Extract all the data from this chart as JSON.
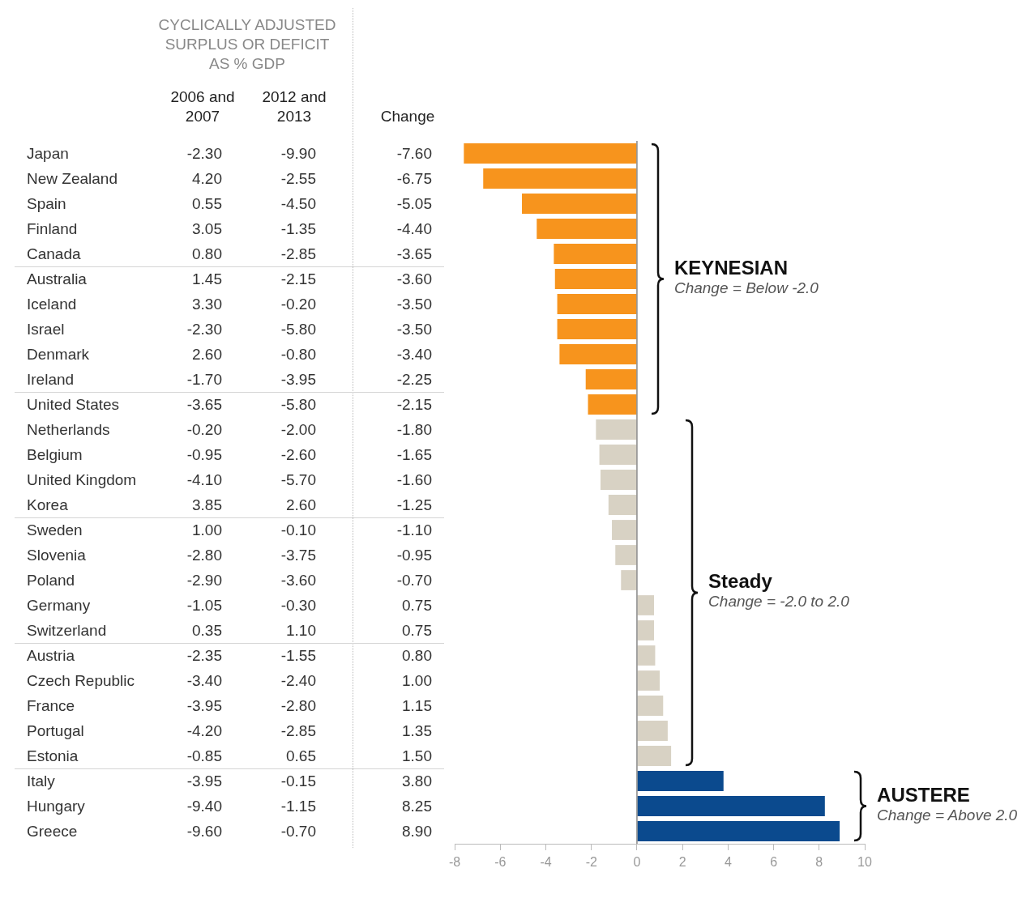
{
  "chart_data": [
    {
      "type": "other",
      "subtitle": "CYCLICALLY ADJUSTED SURPLUS OR DEFICIT AS % GDP",
      "categories": [
        "Japan",
        "New Zealand",
        "Spain",
        "Finland",
        "Canada",
        "Australia",
        "Iceland",
        "Israel",
        "Denmark",
        "Ireland",
        "United States",
        "Netherlands",
        "Belgium",
        "United Kingdom",
        "Korea",
        "Sweden",
        "Slovenia",
        "Poland",
        "Germany",
        "Switzerland",
        "Austria",
        "Czech Republic",
        "France",
        "Portugal",
        "Estonia",
        "Italy",
        "Hungary",
        "Greece"
      ],
      "series": [
        {
          "name": "2006 and 2007",
          "values": [
            -2.3,
            4.2,
            0.55,
            3.05,
            0.8,
            1.45,
            3.3,
            -2.3,
            2.6,
            -1.7,
            -3.65,
            -0.2,
            -0.95,
            -4.1,
            3.85,
            1.0,
            -2.8,
            -2.9,
            -1.05,
            0.35,
            -2.35,
            -3.4,
            -3.95,
            -4.2,
            -0.85,
            -3.95,
            -9.4,
            -9.6
          ],
          "value_labels": [
            "-2.30",
            "4.20",
            "0.55",
            "3.05",
            "0.80",
            "1.45",
            "3.30",
            "-2.30",
            "2.60",
            "-1.70",
            "-3.65",
            "-0.20",
            "-0.95",
            "-4.10",
            "3.85",
            "1.00",
            "-2.80",
            "-2.90",
            "-1.05",
            "0.35",
            "-2.35",
            "-3.40",
            "-3.95",
            "-4.20",
            "-0.85",
            "-3.95",
            "-9.40",
            "-9.60"
          ]
        },
        {
          "name": "2012 and 2013",
          "values": [
            -9.9,
            -2.55,
            -4.5,
            -1.35,
            -2.85,
            -2.15,
            -0.2,
            -5.8,
            -0.8,
            -3.95,
            -5.8,
            -2.0,
            -2.6,
            -5.7,
            2.6,
            -0.1,
            -3.75,
            -3.6,
            -0.3,
            1.1,
            -1.55,
            -2.4,
            -2.8,
            -2.85,
            0.65,
            -0.15,
            -1.15,
            -0.7
          ],
          "value_labels": [
            "-9.90",
            "-2.55",
            "-4.50",
            "-1.35",
            "-2.85",
            "-2.15",
            "-0.20",
            "-5.80",
            "-0.80",
            "-3.95",
            "-5.80",
            "-2.00",
            "-2.60",
            "-5.70",
            "2.60",
            "-0.10",
            "-3.75",
            "-3.60",
            "-0.30",
            "1.10",
            "-1.55",
            "-2.40",
            "-2.80",
            "-2.85",
            "0.65",
            "-0.15",
            "-1.15",
            "-0.70"
          ]
        },
        {
          "name": "Change",
          "values": [
            -7.6,
            -6.75,
            -5.05,
            -4.4,
            -3.65,
            -3.6,
            -3.5,
            -3.5,
            -3.4,
            -2.25,
            -2.15,
            -1.8,
            -1.65,
            -1.6,
            -1.25,
            -1.1,
            -0.95,
            -0.7,
            0.75,
            0.75,
            0.8,
            1.0,
            1.15,
            1.35,
            1.5,
            3.8,
            8.25,
            8.9
          ],
          "value_labels": [
            "-7.60",
            "-6.75",
            "-5.05",
            "-4.40",
            "-3.65",
            "-3.60",
            "-3.50",
            "-3.50",
            "-3.40",
            "-2.25",
            "-2.15",
            "-1.80",
            "-1.65",
            "-1.60",
            "-1.25",
            "-1.10",
            "-0.95",
            "-0.70",
            "0.75",
            "0.75",
            "0.80",
            "1.00",
            "1.15",
            "1.35",
            "1.50",
            "3.80",
            "8.25",
            "8.90"
          ]
        }
      ]
    },
    {
      "type": "bar",
      "orientation": "horizontal",
      "categories": [
        null,
        null,
        null,
        null,
        null,
        null,
        null,
        null,
        null,
        null,
        null,
        null,
        null,
        null,
        null,
        null,
        null,
        null,
        null,
        null,
        null,
        null,
        null,
        null,
        null,
        null,
        null,
        null
      ],
      "series": [
        {
          "values": [
            -7.6,
            -6.75,
            -5.05,
            -4.4,
            -3.65,
            -3.6,
            -3.5,
            -3.5,
            -3.4,
            -2.25,
            -2.15,
            -1.8,
            -1.65,
            -1.6,
            -1.25,
            -1.1,
            -0.95,
            -0.7,
            0.75,
            0.75,
            0.8,
            1.0,
            1.15,
            1.35,
            1.5,
            3.8,
            8.25,
            8.9
          ],
          "colors": [
            "#f7941d",
            "#f7941d",
            "#f7941d",
            "#f7941d",
            "#f7941d",
            "#f7941d",
            "#f7941d",
            "#f7941d",
            "#f7941d",
            "#f7941d",
            "#f7941d",
            "#d8d2c4",
            "#d8d2c4",
            "#d8d2c4",
            "#d8d2c4",
            "#d8d2c4",
            "#d8d2c4",
            "#d8d2c4",
            "#d8d2c4",
            "#d8d2c4",
            "#d8d2c4",
            "#d8d2c4",
            "#d8d2c4",
            "#d8d2c4",
            "#d8d2c4",
            "#0b4a8e",
            "#0b4a8e",
            "#0b4a8e"
          ]
        }
      ],
      "xlim": [
        -8,
        10
      ],
      "xticks": [
        -8,
        -6,
        -4,
        -2,
        0,
        2,
        4,
        6,
        8,
        10
      ],
      "annotations": [
        "KEYNESIAN",
        "Change = Below -2.0",
        "Steady",
        "Change = -2.0 to 2.0",
        "AUSTERE",
        "Change = Above 2.0"
      ]
    }
  ]
}
